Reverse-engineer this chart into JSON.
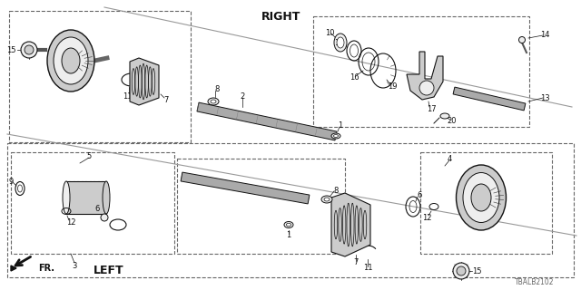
{
  "bg_color": "#ffffff",
  "line_color": "#111111",
  "part_number": "TBALB2102",
  "right_label": "RIGHT",
  "left_label": "LEFT",
  "fr_label": "FR.",
  "figsize": [
    6.4,
    3.2
  ],
  "dpi": 100,
  "gray_dark": "#333333",
  "gray_mid": "#888888",
  "gray_light": "#cccccc",
  "gray_lighter": "#eeeeee",
  "dash_color": "#666666"
}
